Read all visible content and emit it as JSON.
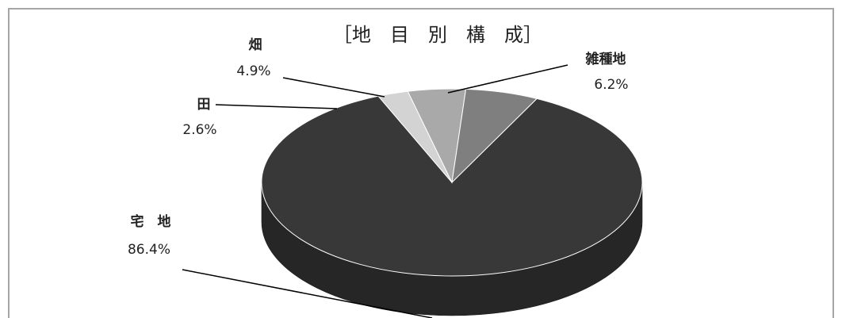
{
  "chart_data": {
    "type": "pie",
    "title": "［地　目　別　構　成］",
    "slices": [
      {
        "name": "宅　地",
        "value": 86.4,
        "pct_label": "86.4%",
        "color": "#383838",
        "side_color": "#262626"
      },
      {
        "name": "田",
        "value": 2.6,
        "pct_label": "2.6%",
        "color": "#d3d3d3",
        "side_color": "#b0b0b0"
      },
      {
        "name": "畑",
        "value": 4.9,
        "pct_label": "4.9%",
        "color": "#a9a9a9",
        "side_color": "#8a8a8a"
      },
      {
        "name": "雑種地",
        "value": 6.2,
        "pct_label": "6.2%",
        "color": "#7f7f7f",
        "side_color": "#666666"
      }
    ],
    "three_d": true,
    "legend": "none"
  }
}
